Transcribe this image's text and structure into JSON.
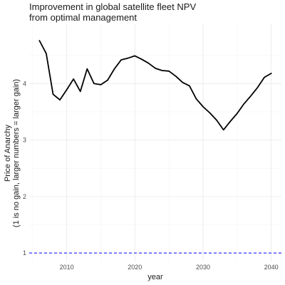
{
  "chart_data": {
    "type": "line",
    "title_line1": "Improvement in global satellite fleet NPV",
    "title_line2": "from optimal management",
    "xlabel": "year",
    "ylabel_line1": "Price of Anarchy",
    "ylabel_line2": "(1 is no gain, larger numbers = larger gain)",
    "xlim": [
      2004.5,
      2041.5
    ],
    "ylim": [
      0.85,
      5.05
    ],
    "x_ticks": [
      2010,
      2020,
      2030,
      2040
    ],
    "y_ticks": [
      1,
      2,
      3,
      4
    ],
    "grid": true,
    "reference_line": {
      "y": 1,
      "color": "#3333ff",
      "style": "dashed"
    },
    "series": [
      {
        "color": "#000000",
        "x": [
          2006,
          2007,
          2008,
          2009,
          2010,
          2011,
          2012,
          2013,
          2014,
          2015,
          2016,
          2017,
          2018,
          2019,
          2020,
          2021,
          2022,
          2023,
          2024,
          2025,
          2026,
          2027,
          2028,
          2029,
          2030,
          2031,
          2032,
          2033,
          2034,
          2035,
          2036,
          2037,
          2038,
          2039,
          2040
        ],
        "y": [
          4.76,
          4.53,
          3.81,
          3.71,
          3.89,
          4.08,
          3.86,
          4.26,
          4.0,
          3.98,
          4.06,
          4.26,
          4.42,
          4.45,
          4.49,
          4.43,
          4.36,
          4.27,
          4.23,
          4.22,
          4.13,
          4.02,
          3.96,
          3.73,
          3.59,
          3.48,
          3.35,
          3.18,
          3.33,
          3.47,
          3.64,
          3.78,
          3.93,
          4.11,
          4.18
        ]
      }
    ]
  }
}
